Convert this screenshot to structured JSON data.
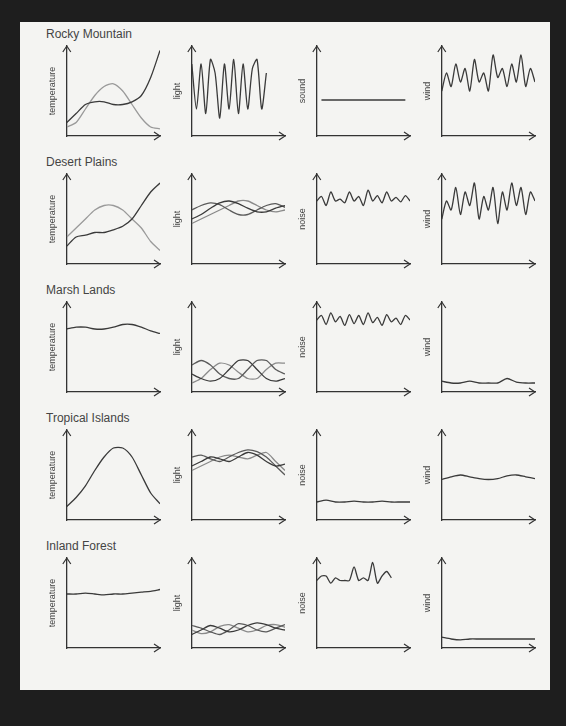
{
  "chart_data": [
    {
      "type": "line",
      "title": "Rocky Mountain",
      "ylabel": "temperature",
      "xlim": [
        0,
        10
      ],
      "ylim": [
        0,
        10
      ],
      "tick_labels": false,
      "grid": false,
      "x": [
        0,
        1,
        2,
        3,
        4,
        5,
        6,
        7,
        8,
        9,
        10
      ],
      "series": [
        {
          "color": "#3a3a3a",
          "values": [
            1.5,
            2.5,
            3.5,
            3.8,
            3.8,
            3.5,
            3.5,
            3.8,
            4.5,
            6.5,
            9.5
          ]
        },
        {
          "color": "#9a9a9a",
          "values": [
            1,
            1.5,
            3,
            4.5,
            5.5,
            5.8,
            5,
            3.5,
            2,
            1,
            0.8
          ]
        }
      ]
    },
    {
      "type": "line",
      "ylabel": "light",
      "xlim": [
        0,
        10
      ],
      "ylim": [
        0,
        10
      ],
      "tick_labels": false,
      "grid": false,
      "x": [
        0,
        0.5,
        1,
        1.5,
        2,
        2.5,
        3,
        3.5,
        4,
        4.5,
        5,
        5.5,
        6,
        6.5,
        7,
        7.5,
        8,
        8.5,
        9,
        9.5,
        10
      ],
      "series": [
        {
          "color": "#3a3a3a",
          "values": [
            8,
            3,
            8,
            2.5,
            8.5,
            7,
            2,
            8,
            3,
            8.5,
            2.5,
            8,
            3,
            7.5,
            8.5,
            3,
            7,
            null,
            null,
            null,
            null
          ]
        }
      ]
    },
    {
      "type": "line",
      "ylabel": "sound",
      "xlim": [
        0,
        10
      ],
      "ylim": [
        0,
        10
      ],
      "tick_labels": false,
      "grid": false,
      "x": [
        0.5,
        9.5
      ],
      "series": [
        {
          "color": "#3a3a3a",
          "values": [
            4,
            4
          ]
        }
      ]
    },
    {
      "type": "line",
      "ylabel": "wind",
      "xlim": [
        0,
        10
      ],
      "ylim": [
        0,
        10
      ],
      "tick_labels": false,
      "grid": false,
      "x": [
        0,
        0.5,
        1,
        1.5,
        2,
        2.5,
        3,
        3.5,
        4,
        4.5,
        5,
        5.5,
        6,
        6.5,
        7,
        7.5,
        8,
        8.5,
        9,
        9.5,
        10
      ],
      "series": [
        {
          "color": "#3a3a3a",
          "values": [
            5,
            7,
            5.5,
            8,
            6,
            7.5,
            5,
            8.5,
            6,
            7,
            5,
            9,
            6.5,
            7.5,
            5.5,
            8,
            6,
            9,
            5.5,
            7.5,
            6
          ]
        }
      ]
    },
    {
      "type": "line",
      "title": "Desert Plains",
      "ylabel": "temperature",
      "xlim": [
        0,
        10
      ],
      "ylim": [
        0,
        10
      ],
      "tick_labels": false,
      "grid": false,
      "x": [
        0,
        1,
        2,
        3,
        4,
        5,
        6,
        7,
        8,
        9,
        10
      ],
      "series": [
        {
          "color": "#3a3a3a",
          "values": [
            2,
            3,
            3.2,
            3.5,
            3.5,
            3.8,
            4.2,
            5,
            6.5,
            8,
            9
          ]
        },
        {
          "color": "#9a9a9a",
          "values": [
            3,
            4,
            5,
            6,
            6.5,
            6.5,
            6,
            5,
            4,
            2.5,
            1.5
          ]
        }
      ]
    },
    {
      "type": "line",
      "ylabel": "light",
      "xlim": [
        0,
        10
      ],
      "ylim": [
        0,
        10
      ],
      "tick_labels": false,
      "grid": false,
      "x": [
        0,
        1,
        2,
        3,
        4,
        5,
        6,
        7,
        8,
        9,
        10
      ],
      "series": [
        {
          "color": "#3a3a3a",
          "values": [
            5,
            5.5,
            6.2,
            6.8,
            7,
            6.7,
            6.2,
            5.8,
            5.8,
            6.2,
            6.5
          ]
        },
        {
          "color": "#5a5a5a",
          "values": [
            6,
            6.5,
            6.8,
            6.6,
            6,
            5.5,
            5.5,
            6,
            6.5,
            6.7,
            6.3
          ]
        },
        {
          "color": "#8a8a8a",
          "values": [
            4.5,
            5,
            5.5,
            6,
            6.5,
            7,
            7,
            6.5,
            6,
            5.8,
            6
          ]
        }
      ]
    },
    {
      "type": "line",
      "ylabel": "noise",
      "xlim": [
        0,
        10
      ],
      "ylim": [
        0,
        10
      ],
      "tick_labels": false,
      "grid": false,
      "x": [
        0,
        0.5,
        1,
        1.5,
        2,
        2.5,
        3,
        3.5,
        4,
        4.5,
        5,
        5.5,
        6,
        6.5,
        7,
        7.5,
        8,
        8.5,
        9,
        9.5,
        10
      ],
      "series": [
        {
          "color": "#3a3a3a",
          "values": [
            7,
            7.5,
            6.5,
            8,
            7,
            7.2,
            6.8,
            8,
            7,
            7.5,
            6.5,
            8.2,
            7,
            7.6,
            6.8,
            8,
            7,
            7.4,
            6.9,
            7.6,
            7
          ]
        }
      ]
    },
    {
      "type": "line",
      "ylabel": "wind",
      "xlim": [
        0,
        10
      ],
      "ylim": [
        0,
        10
      ],
      "tick_labels": false,
      "grid": false,
      "x": [
        0,
        0.5,
        1,
        1.5,
        2,
        2.5,
        3,
        3.5,
        4,
        4.5,
        5,
        5.5,
        6,
        6.5,
        7,
        7.5,
        8,
        8.5,
        9,
        9.5,
        10
      ],
      "series": [
        {
          "color": "#3a3a3a",
          "values": [
            5,
            7,
            6,
            8.5,
            5.5,
            8,
            6.5,
            9,
            5,
            7.5,
            6,
            8.5,
            4.5,
            8,
            6,
            9,
            6.5,
            8.5,
            5.5,
            8,
            7
          ]
        }
      ]
    },
    {
      "type": "line",
      "title": "Marsh Lands",
      "ylabel": "temperature",
      "xlim": [
        0,
        10
      ],
      "ylim": [
        0,
        10
      ],
      "tick_labels": false,
      "grid": false,
      "x": [
        0,
        1,
        2,
        3,
        4,
        5,
        6,
        7,
        8,
        9,
        10
      ],
      "series": [
        {
          "color": "#3a3a3a",
          "values": [
            7,
            7.2,
            7.2,
            7,
            7,
            7.2,
            7.5,
            7.5,
            7.2,
            6.8,
            6.5
          ]
        }
      ]
    },
    {
      "type": "line",
      "ylabel": "light",
      "xlim": [
        0,
        10
      ],
      "ylim": [
        0,
        10
      ],
      "tick_labels": false,
      "grid": false,
      "x": [
        0,
        1,
        2,
        3,
        4,
        5,
        6,
        7,
        8,
        9,
        10
      ],
      "series": [
        {
          "color": "#3a3a3a",
          "values": [
            2,
            1.5,
            1.2,
            1.5,
            2.5,
            3.5,
            3.5,
            2.5,
            1.5,
            1.2,
            1.5
          ]
        },
        {
          "color": "#5a5a5a",
          "values": [
            3,
            3.5,
            3,
            2,
            1.5,
            1.5,
            2.5,
            3.5,
            3.5,
            2.5,
            2
          ]
        },
        {
          "color": "#8a8a8a",
          "values": [
            1,
            1.5,
            2.5,
            3.2,
            3,
            2.2,
            1.5,
            1.5,
            2.5,
            3.2,
            3.2
          ]
        }
      ]
    },
    {
      "type": "line",
      "ylabel": "noise",
      "xlim": [
        0,
        10
      ],
      "ylim": [
        0,
        10
      ],
      "tick_labels": false,
      "grid": false,
      "x": [
        0,
        0.5,
        1,
        1.5,
        2,
        2.5,
        3,
        3.5,
        4,
        4.5,
        5,
        5.5,
        6,
        6.5,
        7,
        7.5,
        8,
        8.5,
        9,
        9.5,
        10
      ],
      "series": [
        {
          "color": "#3a3a3a",
          "values": [
            8,
            8.5,
            7.5,
            8.8,
            7.8,
            8.4,
            7.4,
            8.6,
            7.6,
            8.5,
            7.5,
            8.8,
            7.7,
            8.3,
            7.4,
            8.6,
            7.8,
            8.2,
            7.5,
            8.5,
            8
          ]
        }
      ]
    },
    {
      "type": "line",
      "ylabel": "wind",
      "xlim": [
        0,
        10
      ],
      "ylim": [
        0,
        10
      ],
      "tick_labels": false,
      "grid": false,
      "x": [
        0,
        1,
        2,
        3,
        4,
        5,
        6,
        7,
        8,
        9,
        10
      ],
      "series": [
        {
          "color": "#3a3a3a",
          "values": [
            1.2,
            1,
            1,
            1.2,
            1,
            1,
            1,
            1.5,
            1.1,
            1,
            1
          ]
        }
      ]
    },
    {
      "type": "line",
      "title": "Tropical Islands",
      "ylabel": "temperature",
      "xlim": [
        0,
        10
      ],
      "ylim": [
        0,
        10
      ],
      "tick_labels": false,
      "grid": false,
      "x": [
        0,
        1,
        2,
        3,
        4,
        5,
        6,
        7,
        8,
        9,
        10
      ],
      "series": [
        {
          "color": "#3a3a3a",
          "values": [
            1.5,
            2.5,
            3.8,
            5.5,
            7,
            8,
            8,
            7,
            5,
            3,
            1.8
          ]
        }
      ]
    },
    {
      "type": "line",
      "ylabel": "light",
      "xlim": [
        0,
        10
      ],
      "ylim": [
        0,
        10
      ],
      "tick_labels": false,
      "grid": false,
      "x": [
        0,
        1,
        2,
        3,
        4,
        5,
        6,
        7,
        8,
        9,
        10
      ],
      "series": [
        {
          "color": "#3a3a3a",
          "values": [
            6,
            6.5,
            7,
            6.8,
            6.5,
            7,
            7.5,
            7.2,
            6.5,
            6,
            6.2
          ]
        },
        {
          "color": "#5a5a5a",
          "values": [
            7,
            7.2,
            6.8,
            6.5,
            7,
            7.5,
            7.8,
            7.6,
            7,
            6,
            5
          ]
        },
        {
          "color": "#8a8a8a",
          "values": [
            5.5,
            6,
            6.5,
            7,
            7.2,
            7,
            6.8,
            7.2,
            7.5,
            6.5,
            5.5
          ]
        }
      ]
    },
    {
      "type": "line",
      "ylabel": "noise",
      "xlim": [
        0,
        10
      ],
      "ylim": [
        0,
        10
      ],
      "tick_labels": false,
      "grid": false,
      "x": [
        0,
        1,
        2,
        3,
        4,
        5,
        6,
        7,
        8,
        9,
        10
      ],
      "series": [
        {
          "color": "#3a3a3a",
          "values": [
            2,
            2.2,
            2,
            2,
            2.1,
            2,
            2,
            2.1,
            2,
            2,
            2
          ]
        }
      ]
    },
    {
      "type": "line",
      "ylabel": "wind",
      "xlim": [
        0,
        10
      ],
      "ylim": [
        0,
        10
      ],
      "tick_labels": false,
      "grid": false,
      "x": [
        0,
        1,
        2,
        3,
        4,
        5,
        6,
        7,
        8,
        9,
        10
      ],
      "series": [
        {
          "color": "#3a3a3a",
          "values": [
            4.5,
            4.8,
            5,
            4.8,
            4.6,
            4.5,
            4.6,
            4.9,
            5,
            4.8,
            4.6
          ]
        }
      ]
    },
    {
      "type": "line",
      "title": "Inland Forest",
      "ylabel": "temperature",
      "xlim": [
        0,
        10
      ],
      "ylim": [
        0,
        10
      ],
      "tick_labels": false,
      "grid": false,
      "x": [
        0,
        1,
        2,
        3,
        4,
        5,
        6,
        7,
        8,
        9,
        10
      ],
      "series": [
        {
          "color": "#3a3a3a",
          "values": [
            6,
            6,
            6.1,
            6,
            5.9,
            6,
            6,
            6.1,
            6.2,
            6.3,
            6.5
          ]
        }
      ]
    },
    {
      "type": "line",
      "ylabel": "light",
      "xlim": [
        0,
        10
      ],
      "ylim": [
        0,
        10
      ],
      "tick_labels": false,
      "grid": false,
      "x": [
        0,
        1,
        2,
        3,
        4,
        5,
        6,
        7,
        8,
        9,
        10
      ],
      "series": [
        {
          "color": "#3a3a3a",
          "values": [
            1.5,
            2,
            2.5,
            2.2,
            1.8,
            2,
            2.5,
            2.8,
            2.6,
            2.2,
            2
          ]
        },
        {
          "color": "#5a5a5a",
          "values": [
            2.5,
            2.2,
            1.8,
            1.5,
            2,
            2.7,
            2.5,
            2,
            1.8,
            2.2,
            2.6
          ]
        },
        {
          "color": "#8a8a8a",
          "values": [
            2,
            1.6,
            1.8,
            2.4,
            2.6,
            2.2,
            1.8,
            2,
            2.5,
            2.6,
            2.3
          ]
        }
      ]
    },
    {
      "type": "line",
      "ylabel": "noise",
      "xlim": [
        0,
        10
      ],
      "ylim": [
        0,
        10
      ],
      "tick_labels": false,
      "grid": false,
      "x": [
        0,
        0.5,
        1,
        1.5,
        2,
        2.5,
        3,
        3.5,
        4,
        4.5,
        5,
        5.5,
        6,
        6.5,
        7,
        7.5,
        8,
        8.5,
        9,
        9.5,
        10
      ],
      "series": [
        {
          "color": "#3a3a3a",
          "values": [
            7.5,
            8,
            8,
            7.2,
            7.8,
            7.5,
            7.5,
            7.5,
            9,
            7.5,
            7.8,
            7.5,
            9.5,
            7.2,
            8,
            8.5,
            7.8,
            null,
            null,
            null,
            null
          ]
        }
      ]
    },
    {
      "type": "line",
      "ylabel": "wind",
      "xlim": [
        0,
        10
      ],
      "ylim": [
        0,
        10
      ],
      "tick_labels": false,
      "grid": false,
      "x": [
        0,
        1,
        2,
        3,
        4,
        5,
        6,
        7,
        8,
        9,
        10
      ],
      "series": [
        {
          "color": "#3a3a3a",
          "values": [
            1.2,
            1,
            0.9,
            1,
            1,
            1,
            1,
            1,
            1,
            1,
            1
          ]
        }
      ]
    }
  ]
}
